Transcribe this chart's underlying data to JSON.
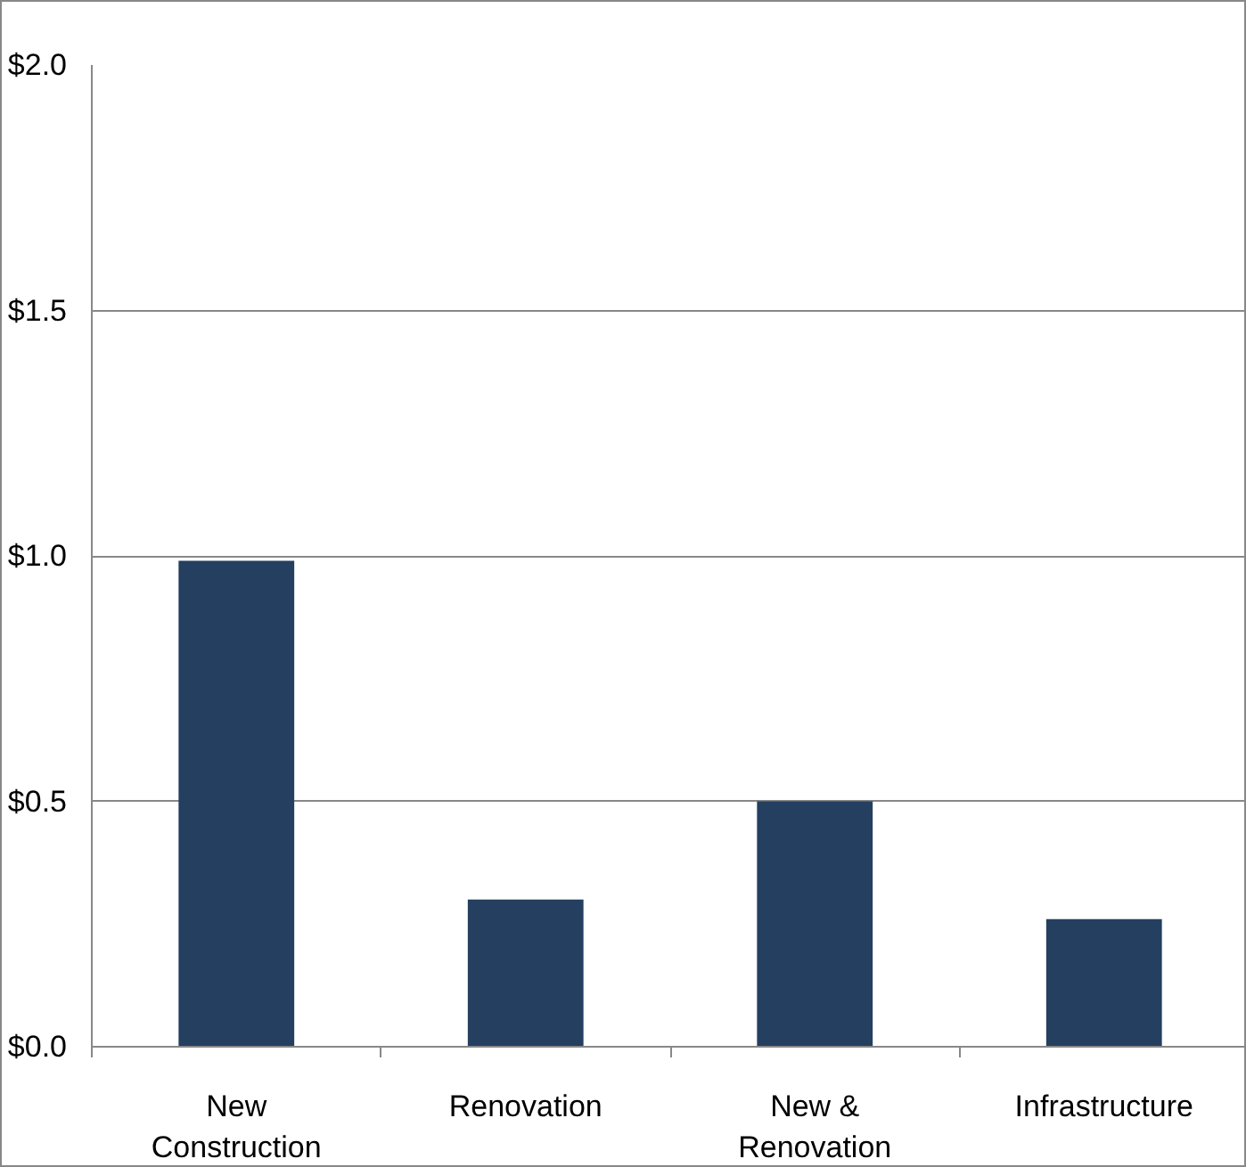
{
  "chart_data": {
    "type": "bar",
    "categories": [
      "New\nConstruction",
      "Renovation",
      "New &\nRenovation",
      "Infrastructure"
    ],
    "values": [
      0.99,
      0.3,
      0.5,
      0.26
    ],
    "color": "#243f60",
    "ylim": [
      0,
      2
    ],
    "yticks": [
      {
        "value": 0,
        "label": "$0.0"
      },
      {
        "value": 0.5,
        "label": "$0.5"
      },
      {
        "value": 1,
        "label": "$1.0"
      },
      {
        "value": 1.5,
        "label": "$1.5"
      },
      {
        "value": 2,
        "label": "$2.0"
      }
    ],
    "grid": "y"
  }
}
